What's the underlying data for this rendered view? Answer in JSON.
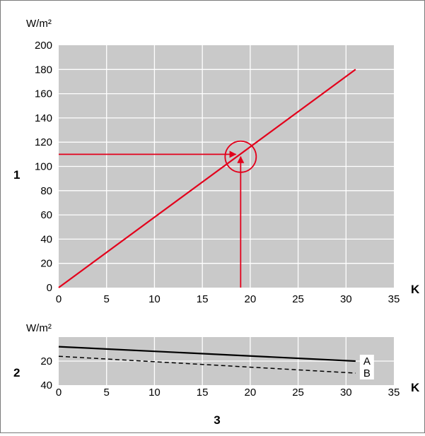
{
  "colors": {
    "plot_bg": "#c9c9c9",
    "grid": "#ffffff",
    "main_line": "#e3001b",
    "loss_lines": "#000000"
  },
  "panel_labels": {
    "upper": "1",
    "lower": "2",
    "bottom": "3"
  },
  "chart_data": [
    {
      "type": "line",
      "ylabel": "W/m²",
      "xlabel": "K",
      "xlim": [
        0,
        35
      ],
      "ylim": [
        0,
        200
      ],
      "xticks": [
        "0",
        "5",
        "10",
        "15",
        "20",
        "25",
        "30",
        "35"
      ],
      "yticks": [
        "0",
        "20",
        "40",
        "60",
        "80",
        "100",
        "120",
        "140",
        "160",
        "180",
        "200"
      ],
      "grid": true,
      "series": [
        {
          "x": [
            0,
            31
          ],
          "y": [
            0,
            180
          ]
        }
      ],
      "annotations": {
        "horizontal_arrow": {
          "from": [
            0,
            110
          ],
          "to": [
            18.5,
            110
          ]
        },
        "vertical_arrow": {
          "from": [
            19,
            0
          ],
          "to": [
            19,
            108
          ]
        },
        "circle_center": [
          19,
          108
        ]
      }
    },
    {
      "type": "line",
      "ylabel": "W/m²",
      "xlabel": "K",
      "xlim": [
        0,
        35
      ],
      "ylim": [
        40,
        0
      ],
      "xticks": [
        "0",
        "5",
        "10",
        "15",
        "20",
        "25",
        "30",
        "35"
      ],
      "yticks": [
        "20",
        "40"
      ],
      "grid": true,
      "series": [
        {
          "name": "A",
          "style": "solid",
          "x": [
            0,
            31
          ],
          "y": [
            8,
            20
          ]
        },
        {
          "name": "B",
          "style": "dashed",
          "x": [
            0,
            31
          ],
          "y": [
            16,
            30
          ]
        }
      ]
    }
  ]
}
